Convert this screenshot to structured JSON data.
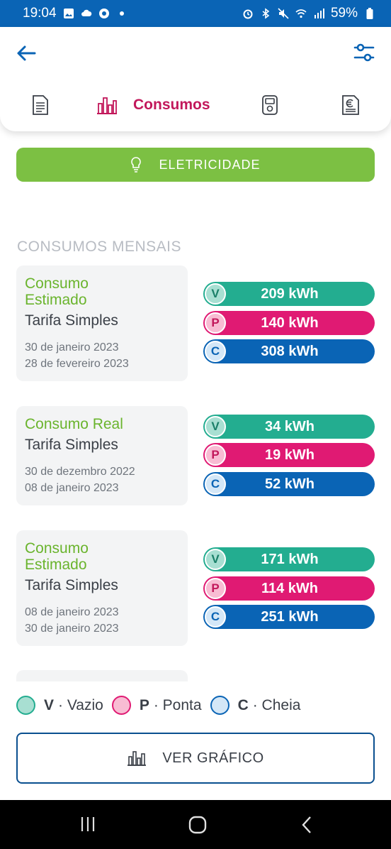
{
  "status_bar": {
    "time": "19:04",
    "battery": "59%",
    "color": "#0a64b5"
  },
  "header": {
    "back_icon": "arrow-left-icon",
    "filter_icon": "sliders-icon",
    "tabs": [
      {
        "icon": "document-icon",
        "label": ""
      },
      {
        "icon": "bar-chart-icon",
        "label": "Consumos"
      },
      {
        "icon": "meter-icon",
        "label": ""
      },
      {
        "icon": "euro-invoice-icon",
        "label": ""
      }
    ],
    "active_tab": "Consumos"
  },
  "energy_button": {
    "label": "ELETRICIDADE",
    "icon": "lightbulb-icon",
    "color": "#7cc043"
  },
  "section_title": "CONSUMOS MENSAIS",
  "readings": [
    {
      "type": "Consumo Estimado",
      "tariff": "Tarifa Simples",
      "start": "30 de janeiro 2023",
      "end": "28 de fevereiro 2023",
      "vazio": "209 kWh",
      "ponta": "140 kWh",
      "cheia": "308 kWh"
    },
    {
      "type": "Consumo Real",
      "tariff": "Tarifa Simples",
      "start": "30 de dezembro 2022",
      "end": "08 de janeiro 2023",
      "vazio": "34 kWh",
      "ponta": "19 kWh",
      "cheia": "52 kWh"
    },
    {
      "type": "Consumo Estimado",
      "tariff": "Tarifa Simples",
      "start": "08 de janeiro 2023",
      "end": "30 de janeiro 2023",
      "vazio": "171 kWh",
      "ponta": "114 kWh",
      "cheia": "251 kWh"
    }
  ],
  "badges": {
    "v": "V",
    "p": "P",
    "c": "C"
  },
  "legend": {
    "v_key": "V",
    "v_label": "· Vazio",
    "p_key": "P",
    "p_label": "· Ponta",
    "c_key": "C",
    "c_label": "· Cheia"
  },
  "colors": {
    "vazio": "#23ad90",
    "ponta": "#e01a73",
    "cheia": "#0a64b5"
  },
  "chart_button": {
    "label": "VER GRÁFICO",
    "icon": "bar-chart-icon"
  },
  "nav": {
    "recents_icon": "recents-icon",
    "home_icon": "home-icon",
    "back_icon": "back-chevron-icon"
  }
}
